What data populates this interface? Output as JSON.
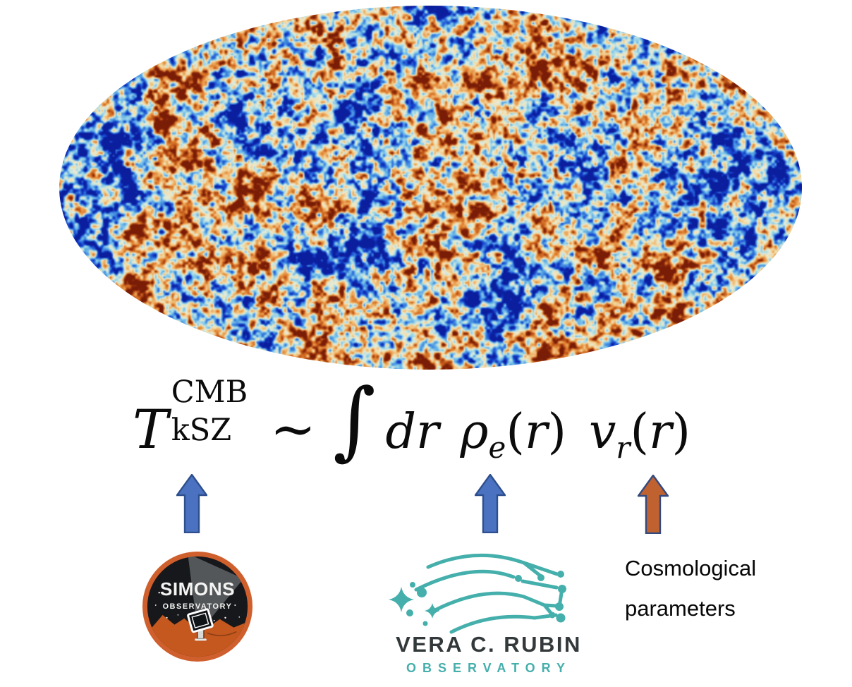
{
  "slide": {
    "background": "#ffffff",
    "cmb_map": {
      "name": "cmb-temperature-sky-map",
      "description": "Planck CMB temperature anisotropy map, Mollweide ellipse",
      "palette": [
        [
          0.0,
          "#0b1f9e"
        ],
        [
          0.1,
          "#1743cf"
        ],
        [
          0.22,
          "#3f8ae0"
        ],
        [
          0.33,
          "#7cc4ea"
        ],
        [
          0.42,
          "#b7e0e4"
        ],
        [
          0.5,
          "#e9ecd6"
        ],
        [
          0.58,
          "#f3d9a2"
        ],
        [
          0.68,
          "#eeb066"
        ],
        [
          0.78,
          "#e08030"
        ],
        [
          0.88,
          "#b94f16"
        ],
        [
          1.0,
          "#7a1d07"
        ]
      ]
    },
    "equation": {
      "lhs_base": "T",
      "lhs_superscript": "CMB",
      "lhs_subscript": "kSZ",
      "relation": "∼",
      "integral": "∫",
      "measure": "dr",
      "rho": "ρ",
      "rho_sub": "e",
      "open_paren": "(",
      "r_arg": "r",
      "close_paren": ")",
      "v": "v",
      "v_sub": "r"
    },
    "arrows": [
      {
        "points_to": "T_kSZ^CMB",
        "fill": "#4a72c0",
        "stroke": "#2e4f8e"
      },
      {
        "points_to": "rho_e(r)",
        "fill": "#4a72c0",
        "stroke": "#2e4f8e"
      },
      {
        "points_to": "v_r(r)",
        "fill": "#bf6230",
        "stroke": "#34497e"
      }
    ],
    "simons_logo": {
      "line1": "SIMONS",
      "line2": "OBSERVATORY",
      "ring_color": "#cf5f2c",
      "sky_color": "#16181c",
      "beam_color": "#565b5e",
      "mountain_color": "#c4581f",
      "text_color": "#f4f4f2"
    },
    "rubin_logo": {
      "line1": "VERA C. RUBIN",
      "line2": "OBSERVATORY",
      "teal": "#45afac",
      "dark": "#33393b"
    },
    "annotation": {
      "line1": "Cosmological",
      "line2": "parameters"
    }
  }
}
